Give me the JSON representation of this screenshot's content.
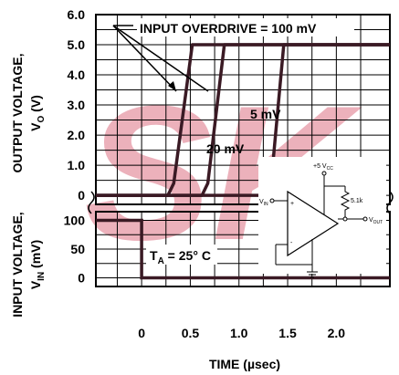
{
  "chart_data": {
    "type": "line",
    "xlabel": "TIME (µsec)",
    "x_ticks": [
      "0",
      "0.5",
      "1.0",
      "1.5",
      "2.0"
    ],
    "x_tick_values": [
      0,
      0.5,
      1.0,
      1.5,
      2.0
    ],
    "xlim": [
      -0.47,
      2.55
    ],
    "grid": true,
    "top_panel": {
      "ylabel_line1": "OUTPUT VOLTAGE,",
      "ylabel_line2": "V",
      "ylabel_sub": "O",
      "ylabel_unit": " (V)",
      "y_ticks": [
        "6.0",
        "5.0",
        "4.0",
        "3.0",
        "2.0",
        "1.0",
        "0"
      ],
      "y_tick_values": [
        6,
        5,
        4,
        3,
        2,
        1,
        0
      ],
      "ylim": [
        -0.3,
        6.0
      ],
      "series": [
        {
          "name": "100 mV",
          "x": [
            -0.47,
            0.27,
            0.33,
            0.52,
            0.56,
            2.55
          ],
          "y": [
            0,
            0,
            0.4,
            5.0,
            5.0,
            5.0
          ]
        },
        {
          "name": "20 mV",
          "x": [
            -0.47,
            0.62,
            0.68,
            0.85,
            0.89,
            2.55
          ],
          "y": [
            0,
            0,
            0.4,
            5.0,
            5.0,
            5.0
          ]
        },
        {
          "name": "5 mV",
          "x": [
            -0.47,
            1.27,
            1.33,
            1.46,
            1.5,
            2.55
          ],
          "y": [
            0,
            0,
            0.4,
            5.0,
            5.0,
            5.0
          ]
        }
      ],
      "annotations": {
        "overdrive": "INPUT OVERDRIVE = 100 mV",
        "label_5mv": "5 mV",
        "label_20mv": "20 mV"
      }
    },
    "bottom_panel": {
      "ylabel_line1": "INPUT VOLTAGE,",
      "ylabel_line2": "V",
      "ylabel_sub": "IN",
      "ylabel_unit": " (mV)",
      "y_ticks": [
        "100",
        "50",
        "0"
      ],
      "y_tick_values": [
        100,
        50,
        0
      ],
      "ylim": [
        -15,
        115
      ],
      "series": [
        {
          "name": "input",
          "x": [
            -0.47,
            0,
            0,
            2.55
          ],
          "y": [
            100,
            100,
            0,
            0
          ]
        }
      ],
      "annotation_ta": "T",
      "annotation_ta_sub": "A",
      "annotation_ta_rest": " = 25° C"
    },
    "schematic": {
      "supply": "+5 V",
      "supply_sub": "CC",
      "resistor": "5.1k",
      "input": "V",
      "input_sub": "IN",
      "output": "V",
      "output_sub": "OUT",
      "plus": "+",
      "minus": "-"
    },
    "watermark": "SK",
    "colors": {
      "trace": "#3a1a24",
      "grid": "#000000",
      "watermark": "#e8a0ac"
    }
  }
}
